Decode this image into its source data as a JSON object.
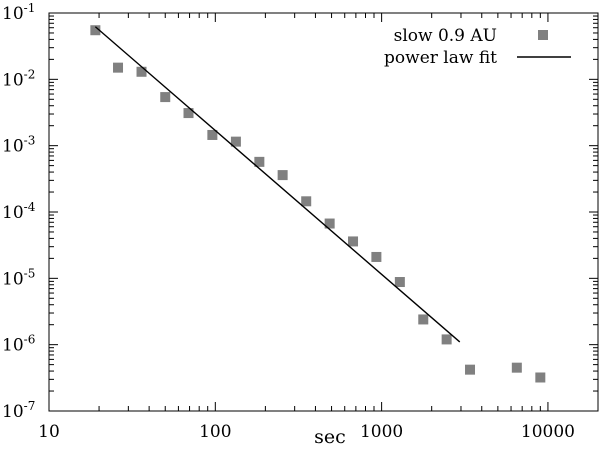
{
  "chart_data": {
    "type": "scatter",
    "title": "",
    "xlabel": "sec",
    "ylabel": "",
    "x_scale": "log",
    "y_scale": "log",
    "xlim": [
      10,
      20000
    ],
    "ylim": [
      1e-07,
      0.1
    ],
    "x_ticks": [
      {
        "value": 10,
        "label": "10"
      },
      {
        "value": 100,
        "label": "100"
      },
      {
        "value": 1000,
        "label": "1000"
      },
      {
        "value": 10000,
        "label": "10000"
      }
    ],
    "y_ticks": [
      {
        "value": 0.1,
        "base": "10",
        "exp": "-1"
      },
      {
        "value": 0.01,
        "base": "10",
        "exp": "-2"
      },
      {
        "value": 0.001,
        "base": "10",
        "exp": "-3"
      },
      {
        "value": 0.0001,
        "base": "10",
        "exp": "-4"
      },
      {
        "value": 1e-05,
        "base": "10",
        "exp": "-5"
      },
      {
        "value": 1e-06,
        "base": "10",
        "exp": "-6"
      },
      {
        "value": 1e-07,
        "base": "10",
        "exp": "-7"
      }
    ],
    "grid": false,
    "legend_position": "top-right",
    "series": [
      {
        "name": "slow 0.9 AU",
        "kind": "markers",
        "marker": "square",
        "color": "#808080",
        "x": [
          19,
          26,
          36,
          50,
          69,
          96,
          133,
          184,
          254,
          352,
          487,
          673,
          930,
          1287,
          1780,
          2460,
          3400,
          6500,
          9000
        ],
        "y": [
          0.055,
          0.015,
          0.013,
          0.0054,
          0.0031,
          0.00145,
          0.00115,
          0.00057,
          0.00036,
          0.000145,
          6.7e-05,
          3.6e-05,
          2.1e-05,
          8.8e-06,
          2.4e-06,
          1.2e-06,
          4.2e-07,
          4.5e-07,
          3.2e-07
        ]
      },
      {
        "name": "power law fit",
        "kind": "line",
        "color": "#000000",
        "x": [
          19,
          2950
        ],
        "y": [
          0.062,
          1.1e-06
        ]
      }
    ]
  }
}
